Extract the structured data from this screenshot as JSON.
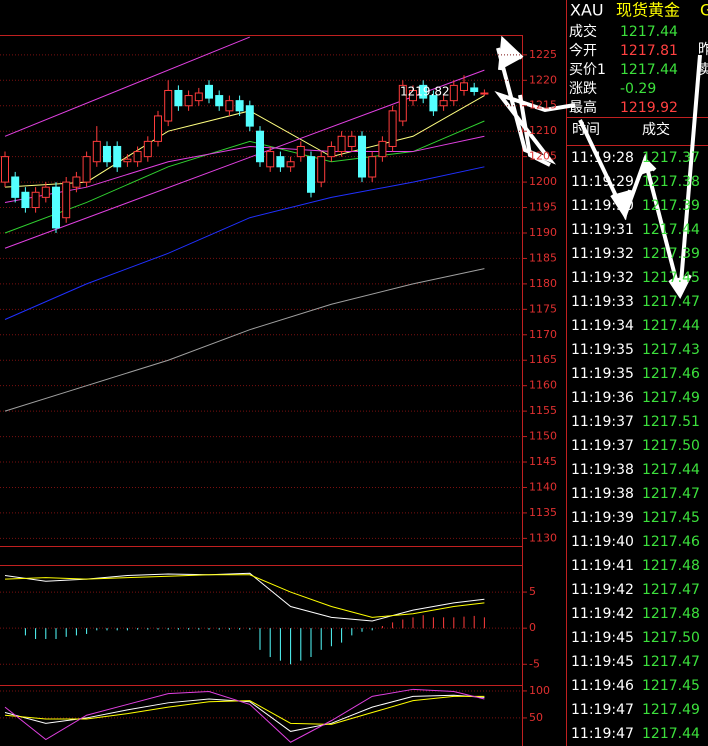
{
  "quote": {
    "symbol": "XAU",
    "name": "现货黄金",
    "extra": "G",
    "rows": [
      [
        "成交",
        "1217.44"
      ],
      [
        "今开",
        "1217.81"
      ],
      [
        "买价1",
        "1217.44"
      ],
      [
        "涨跌",
        "-0.29"
      ],
      [
        "最高",
        "1219.92"
      ]
    ],
    "side": [
      "昨",
      "卖"
    ]
  },
  "ticks": {
    "headers": [
      "时间",
      "成交"
    ],
    "rows": [
      [
        "11:19:28",
        "1217.37"
      ],
      [
        "11:19:29",
        "1217.38"
      ],
      [
        "11:19:30",
        "1217.39"
      ],
      [
        "11:19:31",
        "1217.44"
      ],
      [
        "11:19:32",
        "1217.39"
      ],
      [
        "11:19:32",
        "1217.45"
      ],
      [
        "11:19:33",
        "1217.47"
      ],
      [
        "11:19:34",
        "1217.44"
      ],
      [
        "11:19:35",
        "1217.43"
      ],
      [
        "11:19:35",
        "1217.46"
      ],
      [
        "11:19:36",
        "1217.49"
      ],
      [
        "11:19:37",
        "1217.51"
      ],
      [
        "11:19:37",
        "1217.50"
      ],
      [
        "11:19:38",
        "1217.44"
      ],
      [
        "11:19:38",
        "1217.47"
      ],
      [
        "11:19:39",
        "1217.45"
      ],
      [
        "11:19:40",
        "1217.46"
      ],
      [
        "11:19:41",
        "1217.48"
      ],
      [
        "11:19:42",
        "1217.47"
      ],
      [
        "11:19:42",
        "1217.48"
      ],
      [
        "11:19:45",
        "1217.50"
      ],
      [
        "11:19:45",
        "1217.47"
      ],
      [
        "11:19:46",
        "1217.45"
      ],
      [
        "11:19:47",
        "1217.49"
      ],
      [
        "11:19:47",
        "1217.44"
      ]
    ]
  },
  "chart_data": [
    {
      "type": "candlestick",
      "annotation": "1219.82",
      "up_color": "#ff3c3c",
      "down_color": "#54ffff",
      "ylim": [
        1128.5,
        1228.9
      ],
      "yticks": [
        1130,
        1135,
        1140,
        1145,
        1150,
        1155,
        1160,
        1165,
        1170,
        1175,
        1180,
        1185,
        1190,
        1195,
        1200,
        1205,
        1210,
        1215,
        1220,
        1225
      ],
      "grid": true,
      "open": [
        1200,
        1201,
        1198,
        1195,
        1197,
        1199,
        1193,
        1199,
        1200,
        1204,
        1207,
        1207,
        1204,
        1204,
        1205,
        1208,
        1212,
        1218,
        1215,
        1216,
        1219,
        1217,
        1214,
        1216,
        1215,
        1210,
        1203,
        1205,
        1203,
        1205,
        1205,
        1200,
        1205,
        1206,
        1207,
        1209,
        1201,
        1205,
        1207,
        1212,
        1216,
        1219,
        1217,
        1215,
        1216,
        1218,
        1218.5,
        1217.4
      ],
      "high": [
        1206,
        1202,
        1199,
        1199,
        1200,
        1200,
        1201,
        1202,
        1206,
        1211,
        1208,
        1208,
        1205.5,
        1207,
        1209,
        1214,
        1220,
        1219,
        1218,
        1218.5,
        1220,
        1218,
        1217,
        1217,
        1216,
        1211,
        1207,
        1206,
        1205,
        1208,
        1206,
        1206,
        1208,
        1210,
        1210,
        1210,
        1206,
        1209,
        1215,
        1220,
        1219,
        1220,
        1218,
        1217,
        1220,
        1221,
        1219.5,
        1218.2
      ],
      "low": [
        1199,
        1196,
        1194,
        1194,
        1196,
        1190,
        1192,
        1198,
        1199,
        1203,
        1203,
        1202,
        1203,
        1203,
        1204,
        1207,
        1211,
        1214,
        1214,
        1215,
        1215.5,
        1214,
        1213,
        1213,
        1210,
        1203,
        1202,
        1202,
        1202,
        1204,
        1197,
        1199,
        1204,
        1205,
        1206,
        1200,
        1200,
        1204,
        1206,
        1211,
        1215,
        1215.5,
        1213,
        1214,
        1215,
        1217,
        1217,
        1217
      ],
      "close": [
        1205,
        1197,
        1195,
        1198,
        1199,
        1191,
        1200,
        1201,
        1205,
        1208,
        1204,
        1203,
        1204.5,
        1206,
        1208,
        1213,
        1218,
        1215,
        1217,
        1217.5,
        1216.5,
        1215,
        1216,
        1214,
        1211,
        1204,
        1206,
        1203,
        1204,
        1207,
        1198,
        1205,
        1207,
        1209,
        1209,
        1201,
        1205,
        1208,
        1214,
        1219,
        1218,
        1216.5,
        1214,
        1216,
        1219,
        1219.5,
        1217.8,
        1217.5
      ],
      "series": [
        {
          "color": "#ffff80",
          "x": [
            0,
            8,
            16,
            24,
            32,
            40,
            47
          ],
          "values": [
            1199,
            1200,
            1210,
            1214,
            1205,
            1209,
            1217
          ]
        },
        {
          "color": "#30d030",
          "x": [
            0,
            8,
            16,
            24,
            32,
            40,
            47
          ],
          "values": [
            1190,
            1196,
            1203,
            1208,
            1204,
            1206,
            1212
          ]
        },
        {
          "color": "#e040e0",
          "x": [
            0,
            8,
            16,
            24,
            32,
            40,
            47
          ],
          "values": [
            1196,
            1199,
            1204,
            1207,
            1206,
            1206,
            1209
          ]
        },
        {
          "color": "#2030ff",
          "x": [
            0,
            8,
            16,
            24,
            32,
            40,
            47
          ],
          "values": [
            1173,
            1180,
            1186,
            1193,
            1197,
            1200,
            1203
          ]
        },
        {
          "color": "#a0a0a0",
          "x": [
            0,
            8,
            16,
            24,
            32,
            40,
            47
          ],
          "values": [
            1155,
            1160,
            1165,
            1171,
            1176,
            1180,
            1183
          ]
        },
        {
          "color": "#e040e0",
          "x": [
            0,
            24
          ],
          "values": [
            1209,
            1228.5
          ]
        },
        {
          "color": "#e040e0",
          "x": [
            0,
            47
          ],
          "values": [
            1187,
            1222
          ]
        }
      ]
    },
    {
      "type": "macd",
      "ylim": [
        -5.1,
        8.75
      ],
      "yticks": [
        -5,
        0,
        5
      ],
      "grid": true,
      "up_color": "#ff3c3c",
      "down_color": "#54ffff",
      "histogram": [
        0,
        0,
        -1,
        -1.5,
        -1.5,
        -1.5,
        -1.2,
        -1,
        -0.8,
        -0.3,
        -0.3,
        -0.3,
        -0.3,
        -0.2,
        -0.2,
        -0.2,
        -0.2,
        -0.2,
        -0.2,
        -0.2,
        -0.2,
        -0.2,
        -0.2,
        -0.2,
        -0.2,
        -3,
        -4,
        -4.5,
        -5,
        -4.5,
        -4,
        -3,
        -2.5,
        -2,
        -1,
        -0.5,
        -0.3,
        0.3,
        0.8,
        1.2,
        1.5,
        1.8,
        1.5,
        1.5,
        1.5,
        1.6,
        1.7,
        1.5
      ],
      "series": [
        {
          "color": "#ffffff",
          "x": [
            0,
            4,
            8,
            12,
            16,
            20,
            24,
            28,
            32,
            36,
            40,
            44,
            47
          ],
          "values": [
            7.3,
            6.5,
            6.8,
            7.3,
            7.5,
            7.4,
            7.6,
            3.0,
            1.5,
            1.0,
            2.5,
            3.5,
            4.0
          ]
        },
        {
          "color": "#ffff00",
          "x": [
            0,
            4,
            8,
            12,
            16,
            20,
            24,
            28,
            32,
            36,
            40,
            44,
            47
          ],
          "values": [
            6.8,
            7.0,
            6.8,
            7.0,
            7.2,
            7.4,
            7.4,
            5.0,
            3.0,
            1.5,
            2.0,
            3.0,
            3.5
          ]
        }
      ]
    },
    {
      "type": "kdj",
      "ylim": [
        -2,
        111
      ],
      "yticks": [
        50,
        100
      ],
      "grid": true,
      "series": [
        {
          "color": "#ffffff",
          "x": [
            0,
            4,
            8,
            12,
            16,
            20,
            24,
            28,
            32,
            36,
            40,
            44,
            47
          ],
          "values": [
            60,
            40,
            50,
            65,
            78,
            85,
            80,
            25,
            40,
            70,
            90,
            92,
            88
          ]
        },
        {
          "color": "#ffff00",
          "x": [
            0,
            4,
            8,
            12,
            16,
            20,
            24,
            28,
            32,
            36,
            40,
            44,
            47
          ],
          "values": [
            55,
            48,
            48,
            58,
            70,
            80,
            82,
            40,
            38,
            60,
            82,
            90,
            90
          ]
        },
        {
          "color": "#e040e0",
          "x": [
            0,
            4,
            8,
            12,
            16,
            20,
            24,
            28,
            32,
            36,
            40,
            44,
            47
          ],
          "values": [
            70,
            10,
            55,
            75,
            95,
            99,
            75,
            5,
            45,
            90,
            103,
            99,
            85
          ]
        }
      ]
    }
  ]
}
